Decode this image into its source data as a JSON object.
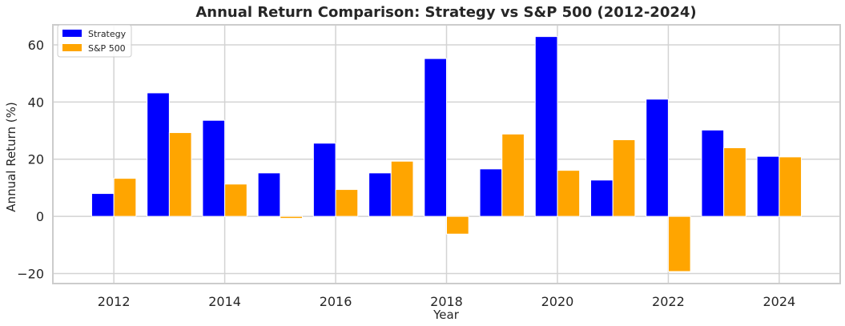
{
  "chart_data": {
    "type": "bar",
    "title": "Annual Return Comparison: Strategy vs S&P 500 (2012-2024)",
    "xlabel": "Year",
    "ylabel": "Annual Return (%)",
    "x": [
      2012,
      2013,
      2014,
      2015,
      2016,
      2017,
      2018,
      2019,
      2020,
      2021,
      2022,
      2023,
      2024
    ],
    "series": [
      {
        "name": "Strategy",
        "color": "#0000ff",
        "values": [
          8.0,
          43.2,
          33.6,
          15.2,
          25.6,
          15.2,
          55.2,
          16.6,
          62.9,
          12.7,
          41.0,
          30.2,
          21.0
        ]
      },
      {
        "name": "S&P 500",
        "color": "#ffa500",
        "values": [
          13.3,
          29.3,
          11.3,
          -0.7,
          9.4,
          19.3,
          -6.2,
          28.8,
          16.1,
          26.8,
          -19.3,
          24.0,
          20.8
        ]
      }
    ],
    "xlim": [
      2010.9,
      2025.1
    ],
    "ylim": [
      -23.5,
      67.0
    ],
    "xticks": [
      2012,
      2014,
      2016,
      2018,
      2020,
      2022,
      2024
    ],
    "yticks": [
      -20,
      0,
      20,
      40,
      60
    ],
    "bar_width_years": 0.4,
    "grid": true,
    "legend_position": "top-left",
    "colors": {
      "grid": "#d3d3d3",
      "spine": "#cccccc",
      "text": "#262626"
    }
  }
}
